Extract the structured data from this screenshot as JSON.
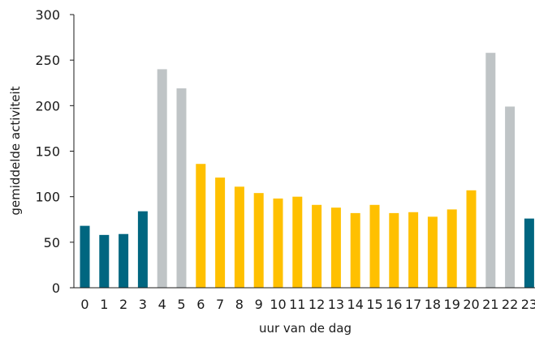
{
  "chart_data": {
    "type": "bar",
    "title": "",
    "xlabel": "uur van de dag",
    "ylabel": "gemiddelde activiteit",
    "ylim": [
      0,
      300
    ],
    "yticks": [
      0,
      50,
      100,
      150,
      200,
      250,
      300
    ],
    "grid": false,
    "categories": [
      "0",
      "1",
      "2",
      "3",
      "4",
      "5",
      "6",
      "7",
      "8",
      "9",
      "10",
      "11",
      "12",
      "13",
      "14",
      "15",
      "16",
      "17",
      "18",
      "19",
      "20",
      "21",
      "22",
      "23"
    ],
    "values": [
      68,
      58,
      59,
      84,
      240,
      219,
      136,
      121,
      111,
      104,
      98,
      100,
      91,
      88,
      82,
      91,
      82,
      83,
      78,
      86,
      107,
      258,
      199,
      76
    ],
    "bar_colors": [
      "#006680",
      "#006680",
      "#006680",
      "#006680",
      "#bfc4c6",
      "#bfc4c6",
      "#ffc000",
      "#ffc000",
      "#ffc000",
      "#ffc000",
      "#ffc000",
      "#ffc000",
      "#ffc000",
      "#ffc000",
      "#ffc000",
      "#ffc000",
      "#ffc000",
      "#ffc000",
      "#ffc000",
      "#ffc000",
      "#ffc000",
      "#bfc4c6",
      "#bfc4c6",
      "#006680"
    ]
  }
}
